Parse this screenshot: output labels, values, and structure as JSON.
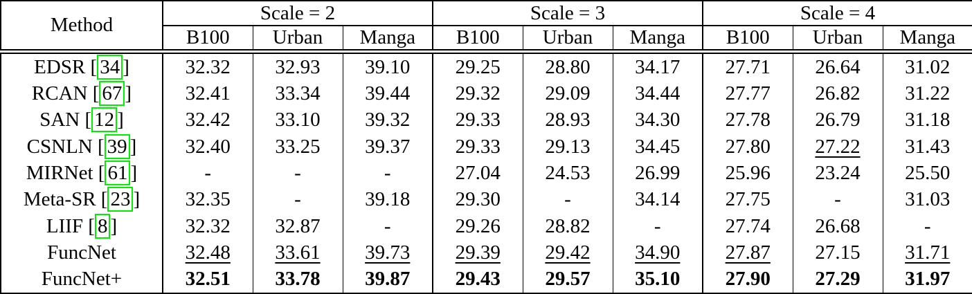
{
  "table": {
    "method_header": "Method",
    "scale_groups": [
      {
        "label": "Scale = 2"
      },
      {
        "label": "Scale = 3"
      },
      {
        "label": "Scale = 4"
      }
    ],
    "sub_columns": [
      "B100",
      "Urban",
      "Manga"
    ],
    "rows": [
      {
        "method": "EDSR",
        "cite": "34",
        "values": [
          "32.32",
          "32.93",
          "39.10",
          "29.25",
          "28.80",
          "34.17",
          "27.71",
          "26.64",
          "31.02"
        ],
        "emphasis": [
          "",
          "",
          "",
          "",
          "",
          "",
          "",
          "",
          ""
        ]
      },
      {
        "method": "RCAN",
        "cite": "67",
        "values": [
          "32.41",
          "33.34",
          "39.44",
          "29.32",
          "29.09",
          "34.44",
          "27.77",
          "26.82",
          "31.22"
        ],
        "emphasis": [
          "",
          "",
          "",
          "",
          "",
          "",
          "",
          "",
          ""
        ]
      },
      {
        "method": "SAN",
        "cite": "12",
        "values": [
          "32.42",
          "33.10",
          "39.32",
          "29.33",
          "28.93",
          "34.30",
          "27.78",
          "26.79",
          "31.18"
        ],
        "emphasis": [
          "",
          "",
          "",
          "",
          "",
          "",
          "",
          "",
          ""
        ]
      },
      {
        "method": "CSNLN",
        "cite": "39",
        "values": [
          "32.40",
          "33.25",
          "39.37",
          "29.33",
          "29.13",
          "34.45",
          "27.80",
          "27.22",
          "31.43"
        ],
        "emphasis": [
          "",
          "",
          "",
          "",
          "",
          "",
          "",
          "u",
          ""
        ]
      },
      {
        "method": "MIRNet",
        "cite": "61",
        "values": [
          "-",
          "-",
          "-",
          "27.04",
          "24.53",
          "26.99",
          "25.96",
          "23.24",
          "25.50"
        ],
        "emphasis": [
          "",
          "",
          "",
          "",
          "",
          "",
          "",
          "",
          ""
        ]
      },
      {
        "method": "Meta-SR",
        "cite": "23",
        "values": [
          "32.35",
          "-",
          "39.18",
          "29.30",
          "-",
          "34.14",
          "27.75",
          "-",
          "31.03"
        ],
        "emphasis": [
          "",
          "",
          "",
          "",
          "",
          "",
          "",
          "",
          ""
        ]
      },
      {
        "method": "LIIF",
        "cite": "8",
        "values": [
          "32.32",
          "32.87",
          "-",
          "29.26",
          "28.82",
          "-",
          "27.74",
          "26.68",
          "-"
        ],
        "emphasis": [
          "",
          "",
          "",
          "",
          "",
          "",
          "",
          "",
          ""
        ]
      },
      {
        "method": "FuncNet",
        "cite": null,
        "values": [
          "32.48",
          "33.61",
          "39.73",
          "29.39",
          "29.42",
          "34.90",
          "27.87",
          "27.15",
          "31.71"
        ],
        "emphasis": [
          "u",
          "u",
          "u",
          "u",
          "u",
          "u",
          "u",
          "",
          "u"
        ]
      },
      {
        "method": "FuncNet+",
        "cite": null,
        "values": [
          "32.51",
          "33.78",
          "39.87",
          "29.43",
          "29.57",
          "35.10",
          "27.90",
          "27.29",
          "31.97"
        ],
        "emphasis": [
          "b",
          "b",
          "b",
          "b",
          "b",
          "b",
          "b",
          "b",
          "b"
        ]
      }
    ],
    "colors": {
      "citation_box": "#00ee00",
      "border": "#000000",
      "background": "#ffffff",
      "text": "#000000"
    }
  }
}
